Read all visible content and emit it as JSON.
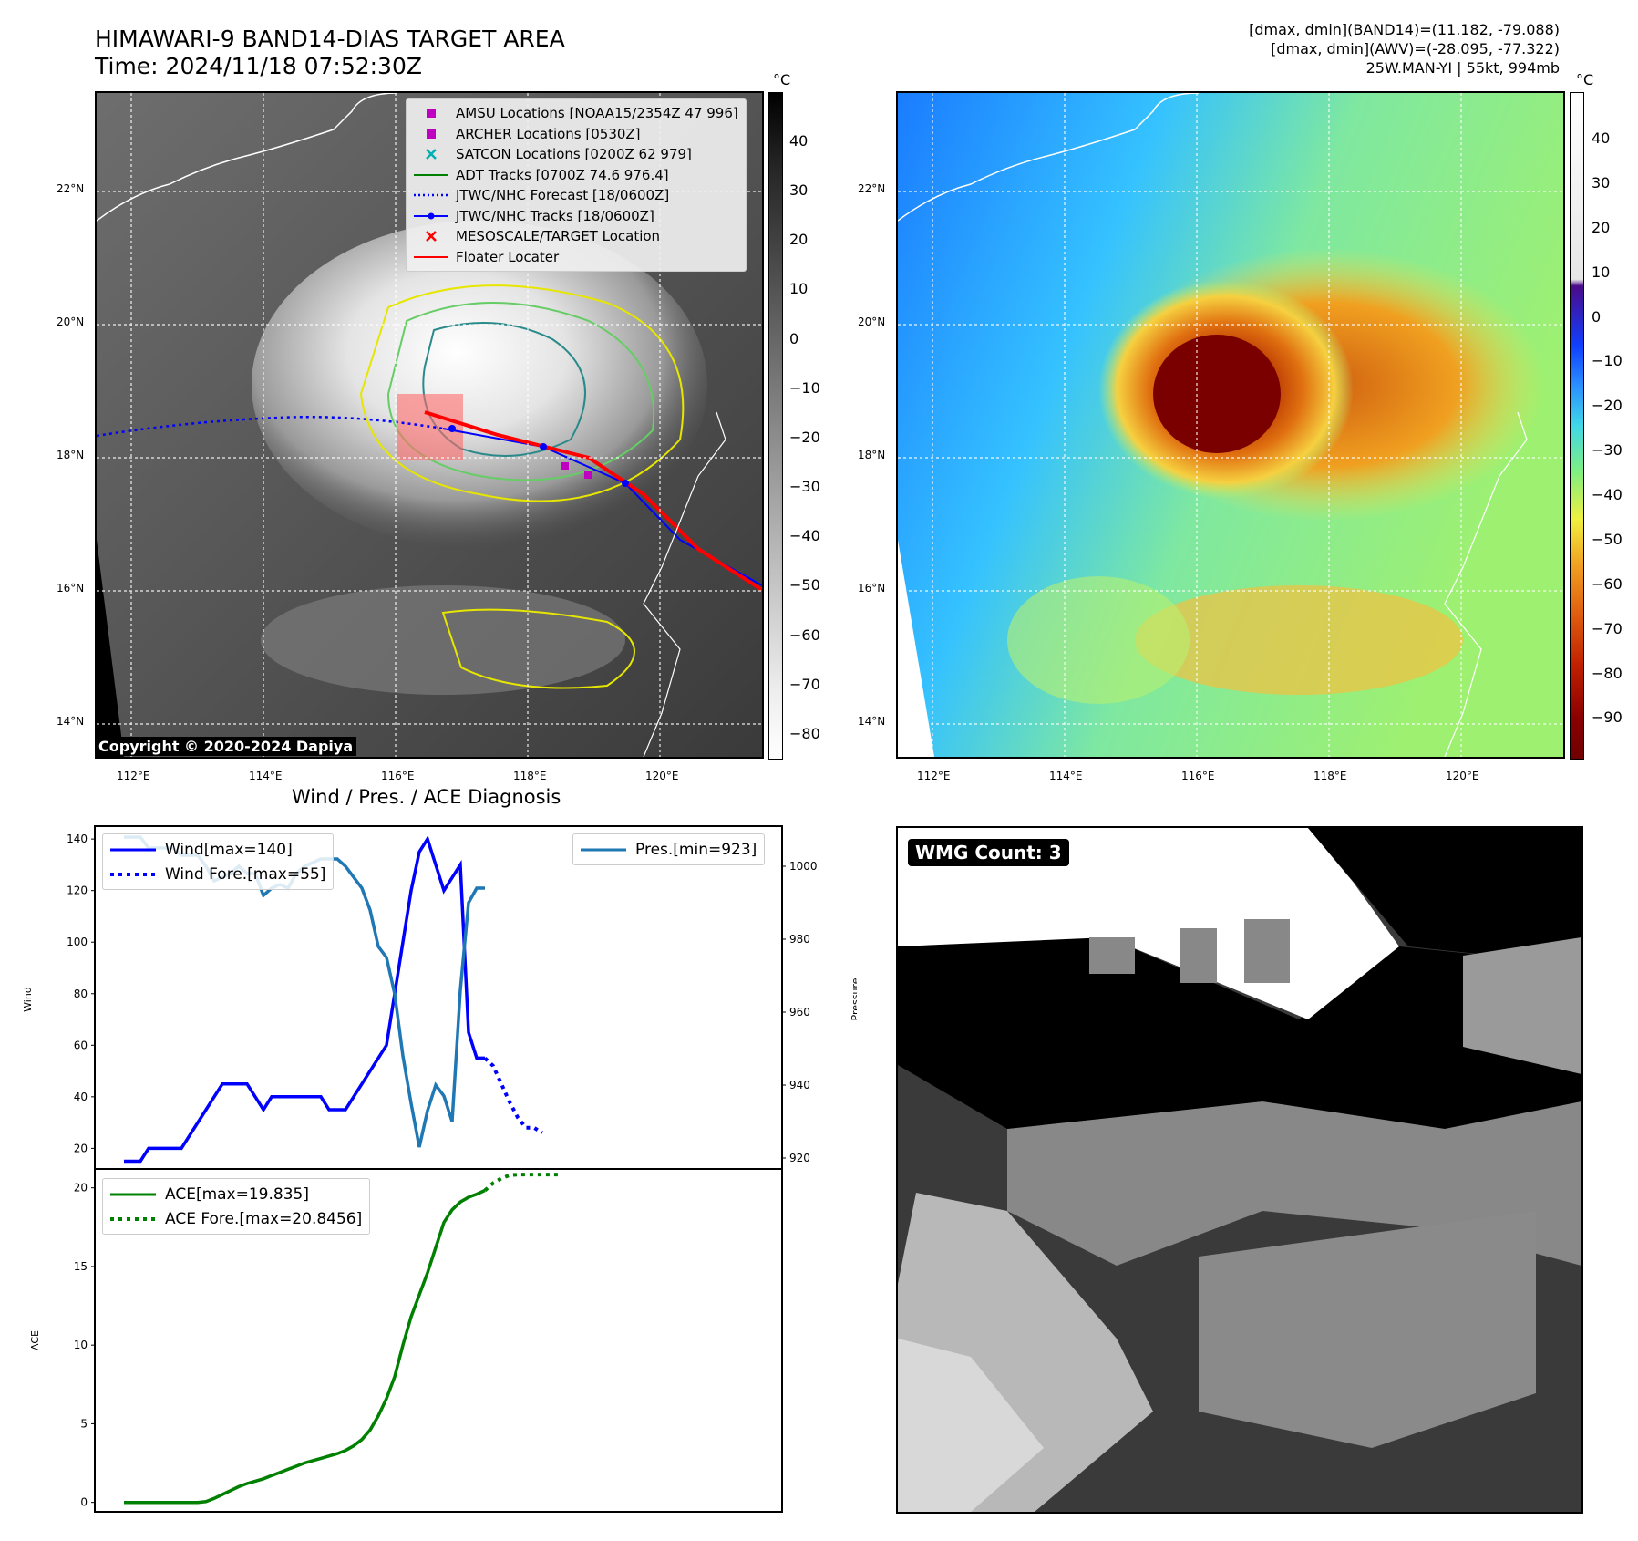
{
  "header": {
    "title_line1": "HIMAWARI-9 BAND14-DIAS TARGET AREA",
    "title_line2": "Time: 2024/11/18 07:52:30Z",
    "right_line1": "[dmax, dmin](BAND14)=(11.182, -79.088)",
    "right_line2": "[dmax, dmin](AWV)=(-28.095, -77.322)",
    "right_line3": "25W.MAN-YI | 55kt, 994mb"
  },
  "map_axes": {
    "lat_labels": [
      "22°N",
      "20°N",
      "18°N",
      "16°N",
      "14°N"
    ],
    "lon_labels": [
      "112°E",
      "114°E",
      "116°E",
      "118°E",
      "120°E"
    ]
  },
  "colorbar_left": {
    "unit": "°C",
    "ticks": [
      "40",
      "30",
      "20",
      "10",
      "0",
      "−10",
      "−20",
      "−30",
      "−40",
      "−50",
      "−60",
      "−70",
      "−80"
    ]
  },
  "colorbar_right": {
    "unit": "°C",
    "ticks": [
      "40",
      "30",
      "20",
      "10",
      "0",
      "−10",
      "−20",
      "−30",
      "−40",
      "−50",
      "−60",
      "−70",
      "−80",
      "−90"
    ]
  },
  "legend": {
    "items": [
      {
        "label": "AMSU Locations [NOAA15/2354Z 47 996]",
        "symbol": "square",
        "color": "#c000c0"
      },
      {
        "label": "ARCHER Locations [0530Z]",
        "symbol": "square",
        "color": "#c000c0"
      },
      {
        "label": "SATCON Locations [0200Z 62 979]",
        "symbol": "x",
        "color": "#00b0b0"
      },
      {
        "label": "ADT Tracks [0700Z 74.6 976.4]",
        "symbol": "line",
        "color": "#008000"
      },
      {
        "label": "JTWC/NHC Forecast [18/0600Z]",
        "symbol": "dotted",
        "color": "#0000ff"
      },
      {
        "label": "JTWC/NHC Tracks [18/0600Z]",
        "symbol": "line-dot",
        "color": "#0000ff"
      },
      {
        "label": "MESOSCALE/TARGET Location",
        "symbol": "x",
        "color": "#ff0000"
      },
      {
        "label": "Floater Locater",
        "symbol": "line",
        "color": "#ff0000"
      }
    ]
  },
  "copyright": "Copyright © 2020-2024 Dapiya",
  "diagnosis": {
    "title": "Wind / Pres. / ACE Diagnosis",
    "wind_ylabel": "Wind",
    "pres_ylabel": "Pressure",
    "ace_ylabel": "ACE",
    "wind_ticks": [
      "140",
      "120",
      "100",
      "80",
      "60",
      "40",
      "20"
    ],
    "pres_ticks": [
      "1000",
      "980",
      "960",
      "940",
      "920"
    ],
    "ace_ticks": [
      "20",
      "15",
      "10",
      "5",
      "0"
    ],
    "legend_wind": "Wind[max=140]",
    "legend_wind_fore": "Wind Fore.[max=55]",
    "legend_pres": "Pres.[min=923]",
    "legend_ace": "ACE[max=19.835]",
    "legend_ace_fore": "ACE Fore.[max=20.8456]"
  },
  "wmg_label": "WMG Count: 3",
  "chart_data": [
    {
      "type": "line",
      "title": "Wind / Pres. / ACE Diagnosis",
      "ylabel": "Wind",
      "ylim": [
        12,
        145
      ],
      "series": [
        {
          "name": "Wind[max=140]",
          "color": "#0000ff",
          "values": [
            15,
            15,
            15,
            20,
            20,
            20,
            20,
            20,
            25,
            30,
            35,
            40,
            45,
            45,
            45,
            45,
            40,
            35,
            40,
            40,
            40,
            40,
            40,
            40,
            40,
            35,
            35,
            35,
            40,
            45,
            50,
            55,
            60,
            80,
            100,
            120,
            135,
            140,
            130,
            120,
            125,
            130,
            65,
            55,
            55
          ]
        },
        {
          "name": "Wind Fore.[max=55]",
          "color": "#0000ff",
          "values": [
            55,
            52,
            45,
            38,
            32,
            28,
            28,
            26
          ]
        }
      ]
    },
    {
      "type": "line",
      "ylabel": "Pressure",
      "ylim": [
        917,
        1011
      ],
      "series": [
        {
          "name": "Pres.[min=923]",
          "color": "#1f77b4",
          "values": [
            1008,
            1008,
            1008,
            1005,
            1005,
            1005,
            1005,
            1003,
            1003,
            1003,
            1000,
            996,
            997,
            998,
            1000,
            998,
            998,
            992,
            994,
            995,
            994,
            998,
            1000,
            1001,
            1002,
            1002,
            1002,
            1000,
            997,
            994,
            988,
            978,
            975,
            965,
            948,
            935,
            923,
            933,
            940,
            937,
            930,
            966,
            990,
            994,
            994
          ]
        }
      ]
    },
    {
      "type": "line",
      "ylabel": "ACE",
      "ylim": [
        -0.6,
        21.2
      ],
      "series": [
        {
          "name": "ACE[max=19.835]",
          "color": "#008000",
          "values": [
            0,
            0,
            0,
            0,
            0,
            0,
            0,
            0,
            0,
            0,
            0.05,
            0.25,
            0.5,
            0.75,
            1.0,
            1.2,
            1.35,
            1.5,
            1.7,
            1.9,
            2.1,
            2.3,
            2.5,
            2.65,
            2.8,
            2.95,
            3.1,
            3.3,
            3.6,
            4.0,
            4.6,
            5.5,
            6.6,
            8.0,
            10.0,
            11.8,
            13.2,
            14.6,
            16.2,
            17.8,
            18.6,
            19.1,
            19.4,
            19.6,
            19.835
          ]
        },
        {
          "name": "ACE Fore.[max=20.8456]",
          "color": "#008000",
          "values": [
            19.835,
            20.3,
            20.6,
            20.8,
            20.8456,
            20.8456,
            20.8456,
            20.8456,
            20.8456,
            20.8456
          ]
        }
      ]
    }
  ]
}
